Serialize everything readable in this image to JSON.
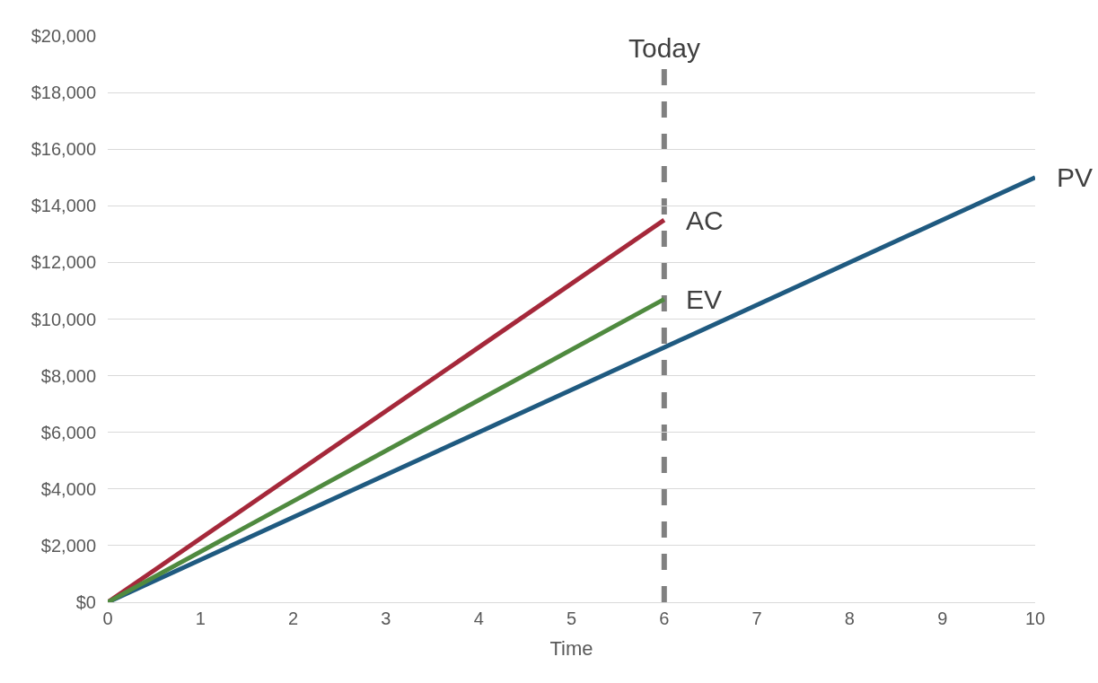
{
  "chart_data": {
    "type": "line",
    "xlabel": "Time",
    "legend": false,
    "grid": "y",
    "marker": "none",
    "line_style": "solid",
    "series": [
      {
        "name": "PV",
        "color": "#1f5a80",
        "x": [
          0,
          10
        ],
        "values": [
          0,
          15000
        ]
      },
      {
        "name": "AC",
        "color": "#a5283a",
        "x": [
          0,
          6
        ],
        "values": [
          0,
          13500
        ]
      },
      {
        "name": "EV",
        "color": "#4f8a3f",
        "x": [
          0,
          6
        ],
        "values": [
          0,
          10700
        ]
      }
    ],
    "xlim": [
      0,
      10
    ],
    "xticks": [
      0,
      1,
      2,
      3,
      4,
      5,
      6,
      7,
      8,
      9,
      10
    ],
    "ylim": [
      0,
      20000
    ],
    "yticks": [
      {
        "value": 0,
        "label": "$0"
      },
      {
        "value": 2000,
        "label": "$2,000"
      },
      {
        "value": 4000,
        "label": "$4,000"
      },
      {
        "value": 6000,
        "label": "$6,000"
      },
      {
        "value": 8000,
        "label": "$8,000"
      },
      {
        "value": 10000,
        "label": "$10,000"
      },
      {
        "value": 12000,
        "label": "$12,000"
      },
      {
        "value": 14000,
        "label": "$14,000"
      },
      {
        "value": 16000,
        "label": "$16,000"
      },
      {
        "value": 18000,
        "label": "$18,000"
      },
      {
        "value": 20000,
        "label": "$20,000"
      }
    ],
    "ref_lines": [
      {
        "axis": "x",
        "value": 6,
        "label": "Today",
        "color": "#808080",
        "line_style": "dashed"
      }
    ]
  }
}
